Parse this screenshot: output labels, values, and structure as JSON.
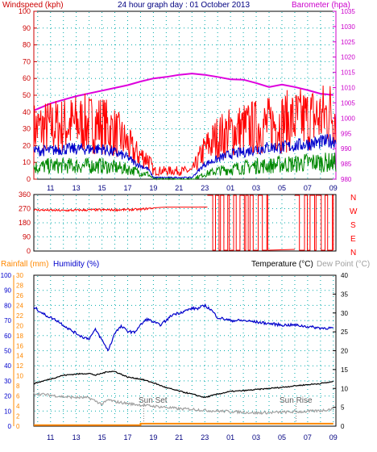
{
  "colors": {
    "wind_axis": "#cc0000",
    "baro_axis": "#cc00cc",
    "rain": "#ff8800",
    "humidity": "#0000cc",
    "temperature": "#000000",
    "dewpoint": "#a0a0a0",
    "grid": "#00aaaa",
    "gust": "#ff0000",
    "avg_wind": "#0000cc",
    "min_wind": "#008800",
    "direction": "#ff0000",
    "pressure": "#dd00dd"
  },
  "top": {
    "title": "24 hour graph day : 01 October 2013",
    "wind_label": "Windspeed (kph)",
    "baro_label": "Barometer (hpa)"
  },
  "direction_panel": {
    "compass": [
      "N",
      "W",
      "S",
      "E",
      "N"
    ],
    "ticks": [
      "360",
      "270",
      "180",
      "90",
      "0"
    ]
  },
  "bottom": {
    "rain_label": "Rainfall (mm)",
    "humidity_label": "Humidity (%)",
    "temp_label": "Temperature (°C)",
    "dew_label": "Dew Point (°C)",
    "sunset": "Sun Set",
    "sunrise": "Sun Rise"
  },
  "chart_data": [
    {
      "type": "line",
      "title": "24 hour graph day : 01 October 2013",
      "x_ticks": [
        "11",
        "13",
        "15",
        "17",
        "19",
        "21",
        "23",
        "01",
        "03",
        "05",
        "07",
        "09"
      ],
      "y_left": {
        "label": "Windspeed (kph)",
        "range": [
          0,
          100
        ],
        "ticks": [
          "0",
          "10",
          "20",
          "30",
          "40",
          "50",
          "60",
          "70",
          "80",
          "90",
          "100"
        ]
      },
      "y_right": {
        "label": "Barometer (hpa)",
        "range": [
          980,
          1035
        ],
        "ticks": [
          "980",
          "985",
          "990",
          "995",
          "1000",
          "1005",
          "1010",
          "1015",
          "1020",
          "1025",
          "1030",
          "1035"
        ]
      },
      "series": [
        {
          "name": "Barometer (hpa)",
          "axis": "right",
          "x": [
            9.7,
            11,
            13,
            15,
            17,
            18,
            19,
            20,
            21,
            22,
            23,
            24,
            25,
            26,
            27,
            28,
            29,
            30,
            31,
            32,
            33
          ],
          "values": [
            1002.5,
            1004.8,
            1007.2,
            1009,
            1010.8,
            1012,
            1013,
            1013.5,
            1014.2,
            1014.6,
            1014.2,
            1013.5,
            1012.7,
            1012.6,
            1011.5,
            1010.2,
            1011,
            1010.2,
            1009.2,
            1008,
            1007.6
          ]
        },
        {
          "axis": "left",
          "role": "gust",
          "x": [
            9.7,
            11,
            12,
            13,
            14,
            15,
            16,
            17,
            17.5,
            18,
            18.6,
            19,
            20,
            21,
            22,
            23,
            24,
            25,
            26,
            27,
            28,
            29,
            30,
            31,
            32,
            33
          ],
          "values": [
            30,
            31,
            32,
            33,
            33,
            33,
            28,
            21,
            16,
            14,
            12,
            5,
            5,
            5,
            5,
            18,
            25,
            28,
            30,
            31,
            32,
            34,
            35,
            36,
            37,
            40
          ]
        },
        {
          "axis": "left",
          "role": "average",
          "x": [
            9.7,
            11,
            12,
            13,
            14,
            15,
            16,
            17,
            17.5,
            18,
            18.6,
            19,
            20,
            21,
            22,
            23,
            24,
            25,
            26,
            27,
            28,
            29,
            30,
            31,
            32,
            33
          ],
          "values": [
            17,
            17,
            18,
            18,
            18,
            18,
            16,
            13,
            10,
            8,
            6,
            1,
            1,
            1,
            1,
            9,
            12,
            15,
            16,
            18,
            19,
            19,
            20,
            21,
            22,
            23
          ]
        },
        {
          "axis": "left",
          "role": "minimum",
          "x": [
            9.7,
            11,
            12,
            13,
            14,
            15,
            16,
            17,
            17.5,
            18,
            18.6,
            19,
            20,
            21,
            22,
            23,
            24,
            25,
            26,
            27,
            28,
            29,
            30,
            31,
            32,
            33
          ],
          "values": [
            7,
            8,
            8,
            8,
            8,
            8,
            7,
            6,
            5,
            4,
            3,
            0,
            0,
            0,
            0,
            3,
            5,
            6,
            7,
            8,
            8,
            9,
            9,
            10,
            10,
            10
          ]
        }
      ]
    },
    {
      "type": "line",
      "y_left": {
        "range": [
          0,
          360
        ],
        "ticks": [
          "0",
          "90",
          "180",
          "270",
          "360"
        ]
      },
      "y_right_labels": [
        "N",
        "W",
        "S",
        "E",
        "N"
      ],
      "series": [
        {
          "role": "wind direction",
          "x": [
            9.7,
            12,
            14,
            16,
            18,
            19,
            20,
            21,
            22,
            22.5
          ],
          "values": [
            262,
            258,
            262,
            262,
            265,
            275,
            280,
            280,
            280,
            280
          ]
        }
      ],
      "switching_segments": [
        [
          23.2,
          27.9
        ],
        [
          30.0,
          33.0
        ]
      ],
      "switching_range": [
        5,
        355
      ]
    },
    {
      "type": "line",
      "y_left_outer": {
        "label": "Rainfall (mm)",
        "range": [
          0,
          30
        ],
        "ticks": [
          "0",
          "2",
          "4",
          "6",
          "8",
          "10",
          "12",
          "14",
          "16",
          "18",
          "20",
          "22",
          "24",
          "26",
          "28",
          "30"
        ]
      },
      "y_left_inner": {
        "label": "Humidity (%)",
        "range": [
          0,
          100
        ],
        "ticks": [
          "0",
          "10",
          "20",
          "30",
          "40",
          "50",
          "60",
          "70",
          "80",
          "90",
          "100"
        ]
      },
      "y_right": {
        "label": "Temperature (°C)",
        "range": [
          0,
          40
        ],
        "ticks": [
          "0",
          "5",
          "10",
          "15",
          "20",
          "25",
          "30",
          "35",
          "40"
        ]
      },
      "series": [
        {
          "name": "Humidity (%)",
          "axis": "inner",
          "x": [
            9.7,
            10.5,
            11.5,
            12.5,
            13.5,
            14,
            14.5,
            15,
            15.5,
            16,
            16.5,
            17,
            17.5,
            18,
            18.5,
            19,
            19.5,
            20,
            20.5,
            21,
            22,
            22.5,
            23,
            23.5,
            24,
            25,
            26,
            27,
            28,
            29,
            30,
            31,
            32,
            33
          ],
          "values": [
            79,
            74,
            70,
            64,
            59,
            58,
            64,
            57,
            50,
            62,
            66,
            63,
            62,
            67,
            71,
            69,
            67,
            70,
            74,
            75,
            78,
            78,
            80,
            77,
            72,
            70,
            70,
            69,
            68,
            67,
            67,
            66,
            65,
            65
          ]
        },
        {
          "name": "Temperature (°C)",
          "axis": "right",
          "x": [
            9.7,
            11,
            12,
            13,
            14,
            14.5,
            15,
            15.5,
            16,
            17,
            18,
            19,
            20,
            21,
            22,
            23,
            24,
            25,
            26,
            27,
            28,
            29,
            30,
            31,
            32,
            33
          ],
          "values": [
            11.3,
            12.5,
            13.5,
            13.8,
            14,
            13.5,
            14,
            14.5,
            14.5,
            13,
            12.5,
            11.5,
            10.2,
            9.3,
            8.5,
            7.6,
            8.5,
            9.2,
            9.4,
            9.7,
            10,
            10.3,
            10.7,
            11,
            11.3,
            11.8
          ]
        },
        {
          "name": "Dew Point (°C)",
          "axis": "right",
          "x": [
            9.7,
            11,
            12,
            13,
            14,
            15,
            15.5,
            16,
            17,
            18,
            19,
            20,
            21,
            22,
            23,
            24,
            25,
            26,
            27,
            28,
            29,
            30,
            31,
            32,
            33
          ],
          "values": [
            8.7,
            8.2,
            7.8,
            7.6,
            7.5,
            5.8,
            7,
            6.5,
            6,
            5.6,
            5.3,
            5,
            4.6,
            4.5,
            4.2,
            4,
            3.9,
            3.7,
            3.5,
            3.6,
            3.7,
            3.8,
            3.9,
            4.1,
            4.6
          ]
        },
        {
          "name": "Rainfall (mm)",
          "axis": "outer",
          "x": [
            9.7,
            17.8,
            18,
            33
          ],
          "values": [
            0.2,
            0.2,
            0.5,
            0.5
          ]
        }
      ],
      "markers": [
        {
          "label": "Sun Set",
          "x": 18.25
        },
        {
          "label": "Sun Rise",
          "x": 30.1
        }
      ]
    }
  ]
}
